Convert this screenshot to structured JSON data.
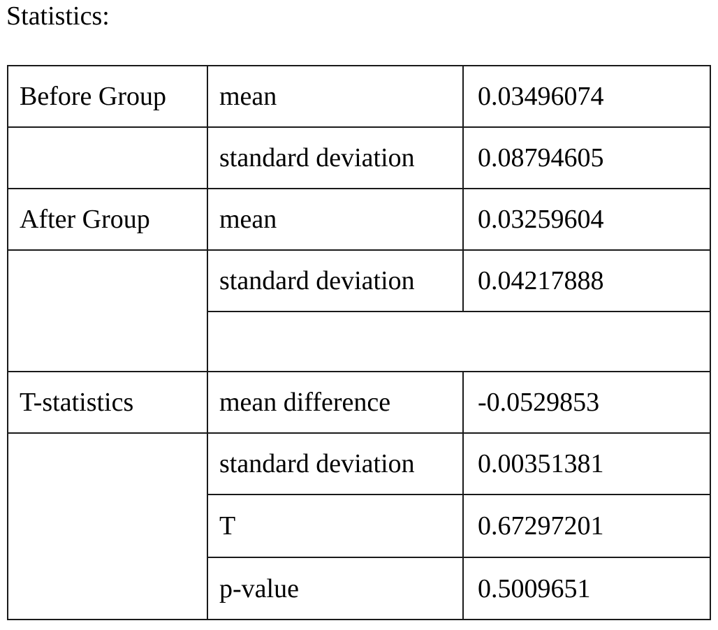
{
  "heading": "Statistics:",
  "table": {
    "rows": [
      {
        "group": "Before Group",
        "measure": "mean",
        "value": "0.03496074"
      },
      {
        "group": "",
        "measure": "standard deviation",
        "value": "0.08794605"
      },
      {
        "group": "After Group",
        "measure": "mean",
        "value": "0.03259604"
      },
      {
        "group": "",
        "measure": "standard deviation",
        "value": "0.04217888"
      },
      {
        "group": "",
        "measure": "",
        "value": ""
      },
      {
        "group": "T-statistics",
        "measure": "mean difference",
        "value": "-0.0529853"
      },
      {
        "group": "",
        "measure": "standard deviation",
        "value": "0.00351381"
      },
      {
        "group": "",
        "measure": "T",
        "value": "0.67297201"
      },
      {
        "group": "",
        "measure": "p-value",
        "value": "0.5009651"
      }
    ]
  }
}
